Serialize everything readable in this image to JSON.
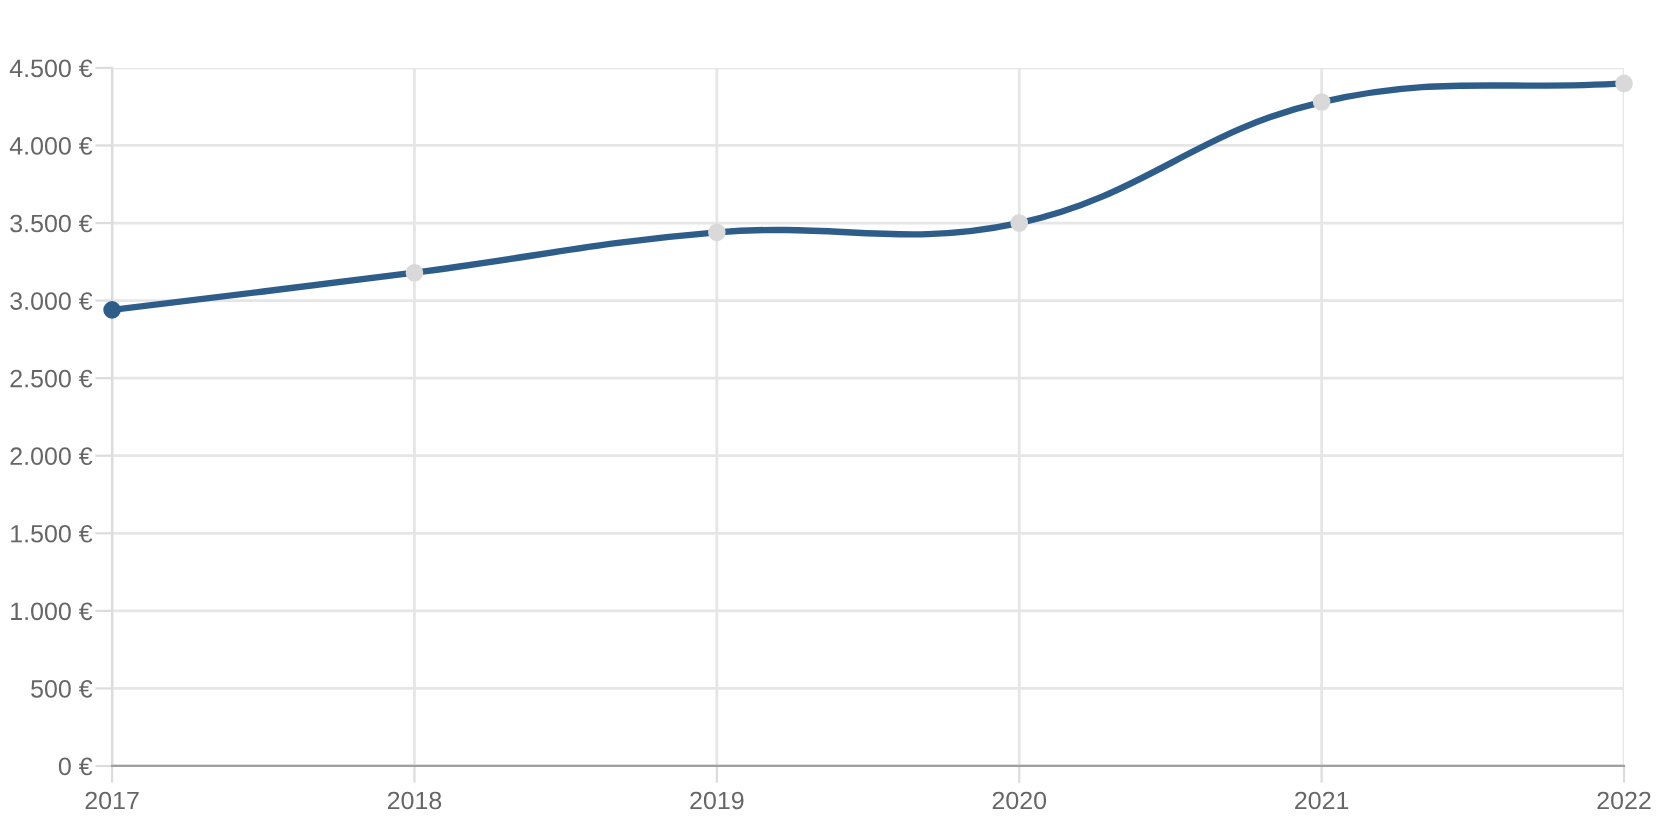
{
  "chart_data": {
    "type": "line",
    "x": [
      2017,
      2018,
      2019,
      2020,
      2021,
      2022
    ],
    "series": [
      {
        "color": "#2f5d8a",
        "colors": [
          "#2f5d8a",
          "#d9d9d9",
          "#d9d9d9",
          "#d9d9d9",
          "#d9d9d9",
          "#d9d9d9"
        ],
        "values": [
          2940,
          3180,
          3440,
          3500,
          4280,
          4400
        ]
      }
    ],
    "xlim": [
      2017,
      2022
    ],
    "xticks": [
      2017,
      2018,
      2019,
      2020,
      2021,
      2022
    ],
    "ylim": [
      0,
      4500
    ],
    "yticks": [
      {
        "value": 0,
        "label": "0 €"
      },
      {
        "value": 500,
        "label": "500 €"
      },
      {
        "value": 1000,
        "label": "1.000 €"
      },
      {
        "value": 1500,
        "label": "1.500 €"
      },
      {
        "value": 2000,
        "label": "2.000 €"
      },
      {
        "value": 2500,
        "label": "2.500 €"
      },
      {
        "value": 3000,
        "label": "3.000 €"
      },
      {
        "value": 3500,
        "label": "3.500 €"
      },
      {
        "value": 4000,
        "label": "4.000 €"
      },
      {
        "value": 4500,
        "label": "4.500 €"
      }
    ],
    "grid": true,
    "marker": "circle",
    "line_style": "solid"
  }
}
